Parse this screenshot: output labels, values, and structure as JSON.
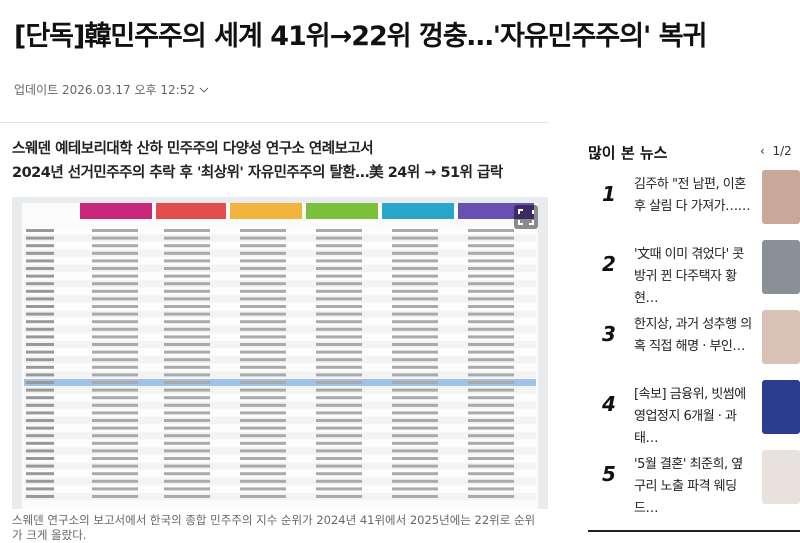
{
  "header": {
    "title": "[단독]韓민주주의 세계 41위→22위 껑충…'자유민주주의' 복귀",
    "updated": "업데이트 2026.03.17 오후 12:52"
  },
  "article": {
    "subtitle": [
      "스웨덴 예테보리대학 산하 민주주의 다양성 연구소 연례보고서",
      "2024년 선거민주주의 추락 후 '최상위' 자유민주주의 탈환…美 24위 → 51위 급락"
    ],
    "caption": "스웨덴 연구소의 보고서에서 한국의 종합 민주주의 지수 순위가 2024년 41위에서 2025년에는 22위로 순위가 크게 올랐다."
  },
  "sidebar": {
    "title": "많이 본 뉴스",
    "pager": "1/2",
    "items": [
      {
        "rank": "1",
        "text": "김주하 \"전 남편, 이혼 후 살림 다 가져가……"
      },
      {
        "rank": "2",
        "text": "'文때 이미 겪었다' 콧방귀 뀐 다주택자 황현…"
      },
      {
        "rank": "3",
        "text": "한지상, 과거 성추행 의혹 직접 해명 · 부인…"
      },
      {
        "rank": "4",
        "text": "[속보] 금융위, 빗썸에 영업정지 6개월 · 과태…"
      },
      {
        "rank": "5",
        "text": "'5월 결혼' 최준희, 옆구리 노출 파격 웨딩드…"
      }
    ]
  }
}
